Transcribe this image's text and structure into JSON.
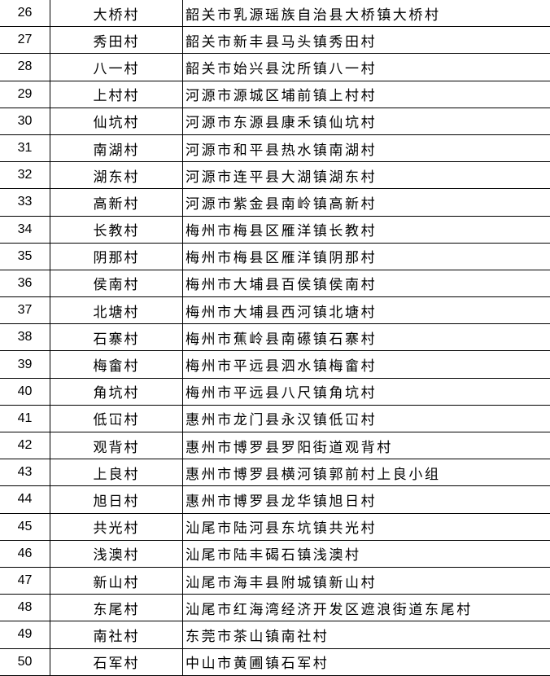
{
  "table": {
    "rows": [
      [
        26,
        "大桥村",
        "韶关市乳源瑶族自治县大桥镇大桥村"
      ],
      [
        27,
        "秀田村",
        "韶关市新丰县马头镇秀田村"
      ],
      [
        28,
        "八一村",
        "韶关市始兴县沈所镇八一村"
      ],
      [
        29,
        "上村村",
        "河源市源城区埔前镇上村村"
      ],
      [
        30,
        "仙坑村",
        "河源市东源县康禾镇仙坑村"
      ],
      [
        31,
        "南湖村",
        "河源市和平县热水镇南湖村"
      ],
      [
        32,
        "湖东村",
        "河源市连平县大湖镇湖东村"
      ],
      [
        33,
        "高新村",
        "河源市紫金县南岭镇高新村"
      ],
      [
        34,
        "长教村",
        "梅州市梅县区雁洋镇长教村"
      ],
      [
        35,
        "阴那村",
        "梅州市梅县区雁洋镇阴那村"
      ],
      [
        36,
        "侯南村",
        "梅州市大埔县百侯镇侯南村"
      ],
      [
        37,
        "北塘村",
        "梅州市大埔县西河镇北塘村"
      ],
      [
        38,
        "石寨村",
        "梅州市蕉岭县南礤镇石寨村"
      ],
      [
        39,
        "梅畲村",
        "梅州市平远县泗水镇梅畲村"
      ],
      [
        40,
        "角坑村",
        "梅州市平远县八尺镇角坑村"
      ],
      [
        41,
        "低冚村",
        "惠州市龙门县永汉镇低冚村"
      ],
      [
        42,
        "观背村",
        "惠州市博罗县罗阳街道观背村"
      ],
      [
        43,
        "上良村",
        "惠州市博罗县横河镇郭前村上良小组"
      ],
      [
        44,
        "旭日村",
        "惠州市博罗县龙华镇旭日村"
      ],
      [
        45,
        "共光村",
        "汕尾市陆河县东坑镇共光村"
      ],
      [
        46,
        "浅澳村",
        "汕尾市陆丰碣石镇浅澳村"
      ],
      [
        47,
        "新山村",
        "汕尾市海丰县附城镇新山村"
      ],
      [
        48,
        "东尾村",
        "汕尾市红海湾经济开发区遮浪街道东尾村"
      ],
      [
        49,
        "南社村",
        "东莞市茶山镇南社村"
      ],
      [
        50,
        "石军村",
        "中山市黄圃镇石军村"
      ]
    ]
  }
}
